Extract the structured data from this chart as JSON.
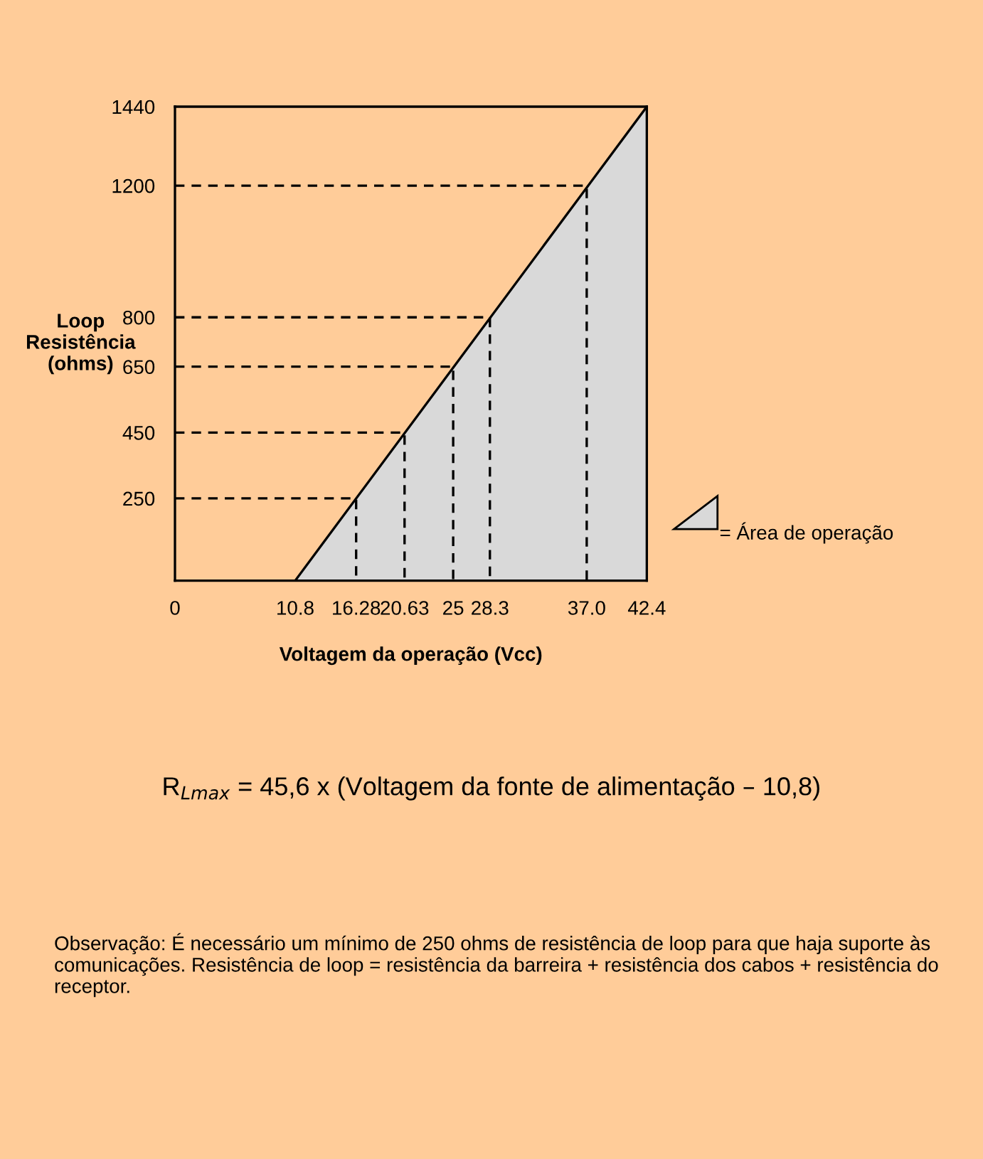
{
  "chart_data": {
    "type": "area",
    "xlabel": "Voltagem da operação (Vcc)",
    "ylabel": "Loop\nResistência\n(ohms)",
    "xlim": [
      0,
      42.4
    ],
    "ylim": [
      0,
      1440
    ],
    "xticks": [
      0,
      10.8,
      16.28,
      20.63,
      25,
      28.3,
      {
        "value": 37.0,
        "label": "37.0"
      },
      42.4
    ],
    "yticks": [
      250,
      450,
      650,
      800,
      1200,
      1440
    ],
    "grid": false,
    "legend": "right",
    "series": [
      {
        "name": "= Área de operação",
        "color": "#d9d9d9",
        "x": [
          10.8,
          42.4
        ],
        "values": [
          0,
          1440
        ]
      },
      {
        "type": "line",
        "line_style": "dashed",
        "color": "#000000",
        "x": [
          0,
          16.28,
          16.28
        ],
        "values": [
          250,
          250,
          0
        ]
      },
      {
        "type": "line",
        "line_style": "dashed",
        "color": "#000000",
        "x": [
          0,
          20.63,
          20.63
        ],
        "values": [
          450,
          450,
          0
        ]
      },
      {
        "type": "line",
        "line_style": "dashed",
        "color": "#000000",
        "x": [
          0,
          25,
          25
        ],
        "values": [
          650,
          650,
          0
        ]
      },
      {
        "type": "line",
        "line_style": "dashed",
        "color": "#000000",
        "x": [
          0,
          28.3,
          28.3
        ],
        "values": [
          800,
          800,
          0
        ]
      },
      {
        "type": "line",
        "line_style": "dashed",
        "color": "#000000",
        "x": [
          0,
          37.0,
          37.0
        ],
        "values": [
          1200,
          1200,
          0
        ]
      }
    ],
    "annotations": [
      "R$_{Lmax}$ = 45,6 x (Voltagem da fonte de alimentação – 10,8)",
      "Observação: É necessário um mínimo de 250 ohms de resistência de loop para que haja suporte às comunicações. Resistência de loop = resistência da barreira + resistência dos cabos + resistência do receptor."
    ]
  }
}
